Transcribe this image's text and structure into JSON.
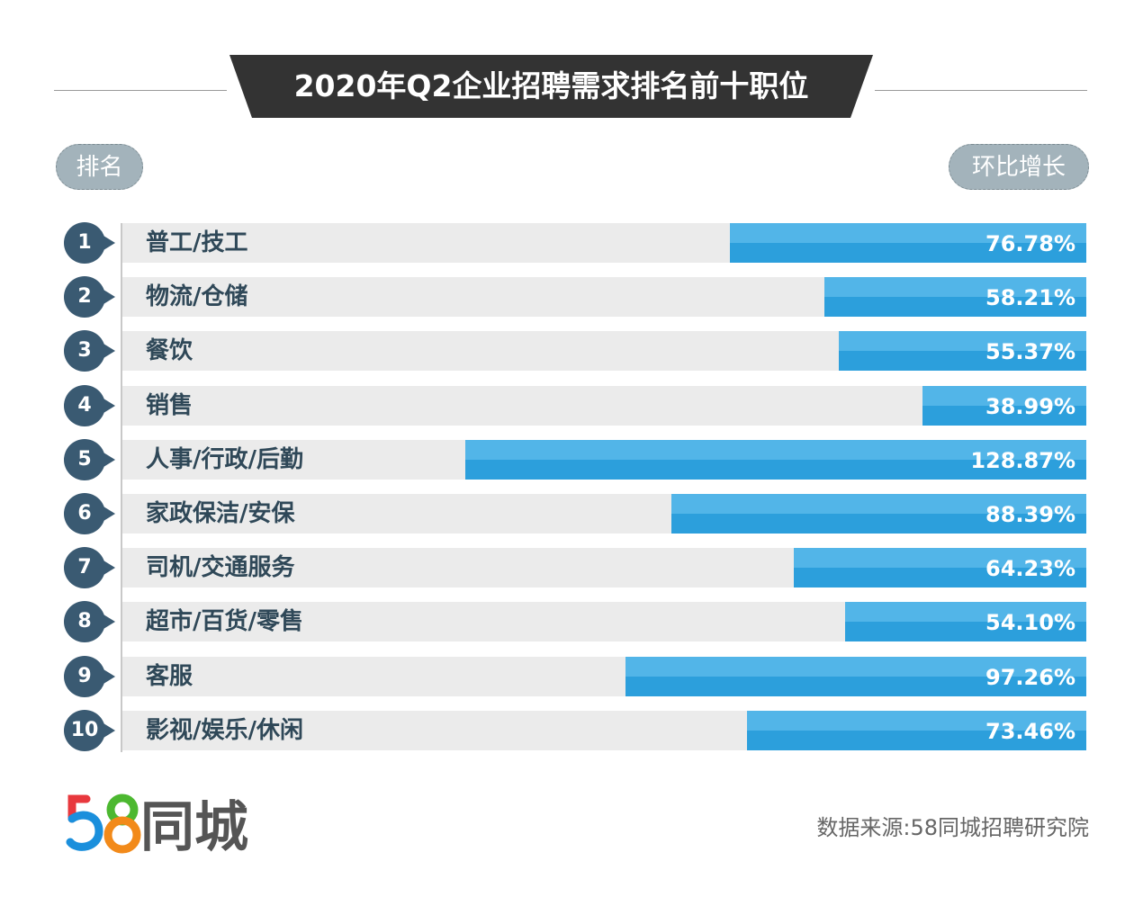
{
  "chart_data": {
    "type": "bar",
    "orientation": "horizontal",
    "title": "2020年Q2企业招聘需求排名前十职位",
    "left_header": "排名",
    "right_header": "环比增长",
    "ranks": [
      "1",
      "2",
      "3",
      "4",
      "5",
      "6",
      "7",
      "8",
      "9",
      "10"
    ],
    "categories": [
      "普工/技工",
      "物流/仓储",
      "餐饮",
      "销售",
      "人事/行政/后勤",
      "家政保洁/安保",
      "司机/交通服务",
      "超市/百货/零售",
      "客服",
      "影视/娱乐/休闲"
    ],
    "values": [
      76.78,
      58.21,
      55.37,
      38.99,
      128.87,
      88.39,
      64.23,
      54.1,
      97.26,
      73.46
    ],
    "value_labels": [
      "76.78%",
      "58.21%",
      "55.37%",
      "38.99%",
      "128.87%",
      "88.39%",
      "64.23%",
      "54.10%",
      "97.26%",
      "73.46%"
    ],
    "unit": "%",
    "colors": {
      "bar": "#2c9fdc",
      "bar_light": "#52b5e8",
      "badge": "#3a5a72",
      "title_bg": "#333333"
    }
  },
  "logo": {
    "text": "58同城"
  },
  "source": "数据来源:58同城招聘研究院"
}
